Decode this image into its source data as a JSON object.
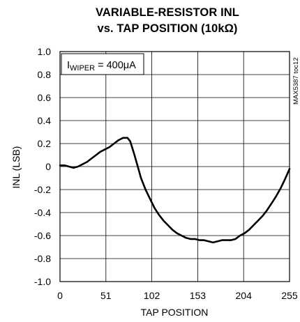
{
  "chart_data": {
    "type": "line",
    "title_line1": "VARIABLE-RESISTOR INL",
    "title_line2": "vs. TAP POSITION (10kΩ)",
    "xlabel": "TAP POSITION",
    "ylabel": "INL (LSB)",
    "xlim": [
      0,
      255
    ],
    "ylim": [
      -1.0,
      1.0
    ],
    "x_ticks": [
      0,
      51,
      102,
      153,
      204,
      255
    ],
    "x_tick_labels": [
      "0",
      "51",
      "102",
      "153",
      "204",
      "255"
    ],
    "y_ticks": [
      1.0,
      0.8,
      0.6,
      0.4,
      0.2,
      0,
      -0.2,
      -0.4,
      -0.6,
      -0.8,
      -1.0
    ],
    "y_tick_labels": [
      "1.0",
      "0.8",
      "0.6",
      "0.4",
      "0.2",
      "0",
      "-0.2",
      "-0.4",
      "-0.6",
      "-0.8",
      "-1.0"
    ],
    "grid": true,
    "annotation": {
      "prefix": "I",
      "subscript": "WIPER",
      "rest": " = 400μA"
    },
    "watermark": "MAX5387 toc12",
    "series": [
      {
        "x": [
          0,
          5,
          10,
          15,
          20,
          25,
          30,
          35,
          40,
          45,
          50,
          55,
          60,
          65,
          70,
          75,
          78,
          82,
          86,
          90,
          95,
          100,
          105,
          110,
          115,
          120,
          125,
          130,
          135,
          140,
          145,
          150,
          155,
          160,
          165,
          170,
          175,
          180,
          185,
          190,
          195,
          200,
          205,
          210,
          215,
          220,
          225,
          230,
          235,
          240,
          245,
          250,
          255
        ],
        "y": [
          0.01,
          0.01,
          0.0,
          -0.01,
          0.0,
          0.02,
          0.04,
          0.07,
          0.1,
          0.13,
          0.15,
          0.17,
          0.2,
          0.23,
          0.25,
          0.25,
          0.22,
          0.12,
          0.01,
          -0.1,
          -0.2,
          -0.28,
          -0.36,
          -0.42,
          -0.47,
          -0.51,
          -0.55,
          -0.58,
          -0.6,
          -0.62,
          -0.63,
          -0.63,
          -0.64,
          -0.64,
          -0.65,
          -0.66,
          -0.65,
          -0.64,
          -0.64,
          -0.64,
          -0.63,
          -0.6,
          -0.58,
          -0.55,
          -0.51,
          -0.47,
          -0.43,
          -0.38,
          -0.32,
          -0.26,
          -0.19,
          -0.11,
          -0.02
        ]
      }
    ]
  }
}
